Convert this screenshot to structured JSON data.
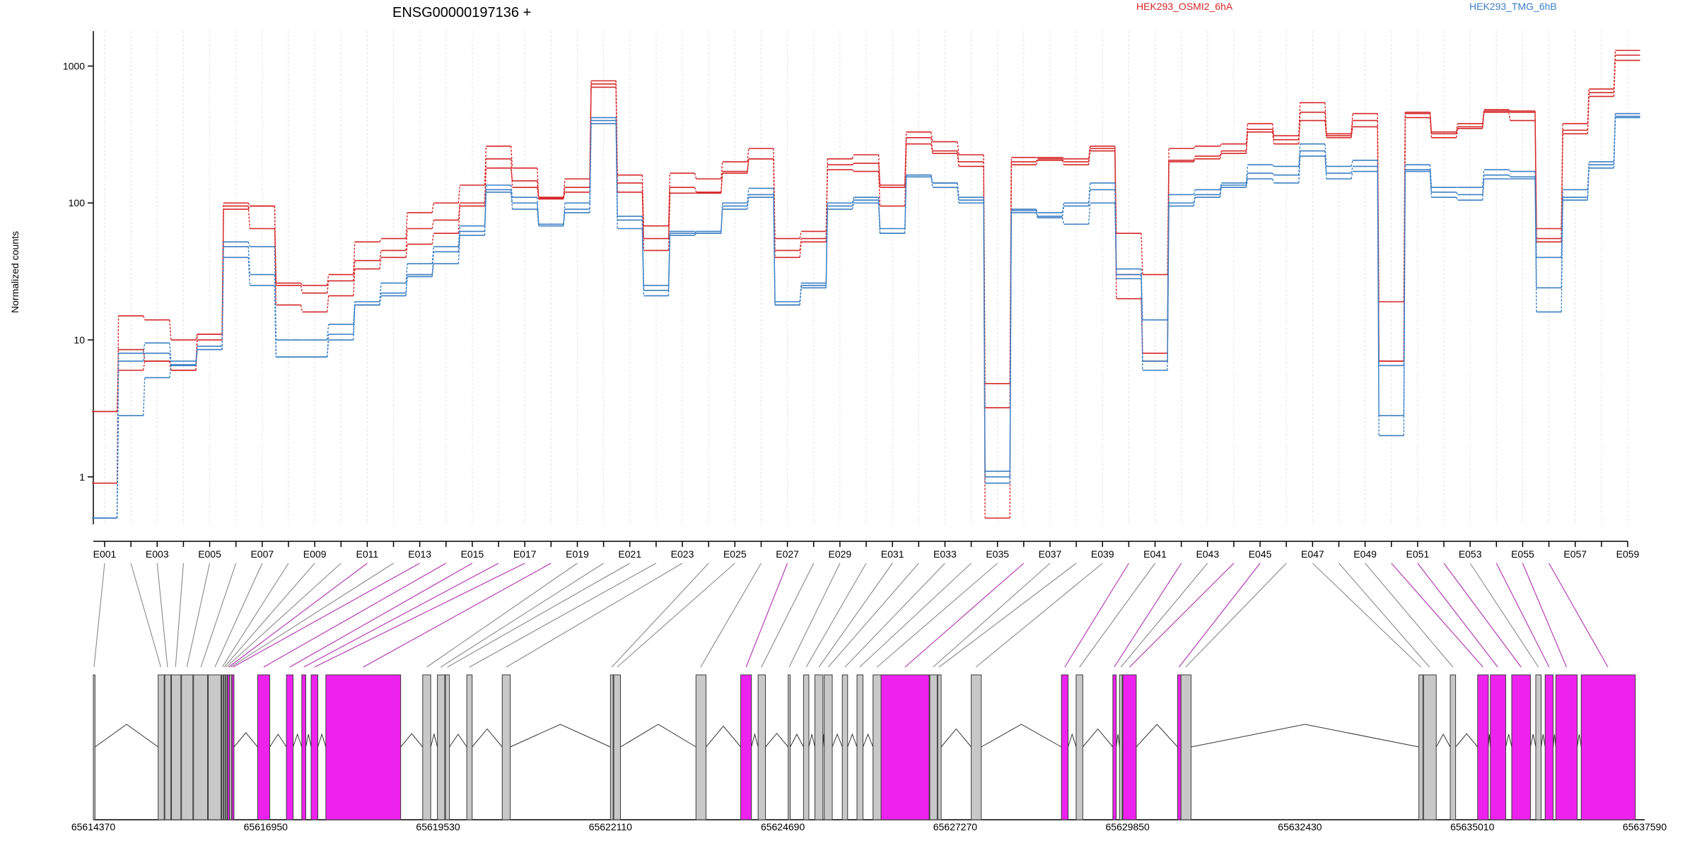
{
  "chart_data": {
    "type": "line",
    "title": "ENSG00000197136 +",
    "ylabel": "Normalized counts",
    "yscale": "log",
    "ylim": [
      0.45,
      1800
    ],
    "grid": "vertical",
    "legend": "top",
    "yticks": [
      1,
      10,
      100,
      1000
    ],
    "ytick_labels": [
      "1",
      "10",
      "100",
      "1000"
    ],
    "colors": {
      "HEK293_OSMI2_6hA": "#d62728",
      "HEK293_TMG_6hB": "#3b7fc4",
      "connector_gray": "#888888",
      "connector_magenta": "#b02fb0",
      "exon_gray": "#c8c8c8",
      "exon_magenta": "#ee22ee"
    },
    "exons": [
      "E001",
      "E002",
      "E003",
      "E004",
      "E005",
      "E006",
      "E007",
      "E008",
      "E009",
      "E010",
      "E011",
      "E012",
      "E013",
      "E014",
      "E015",
      "E016",
      "E017",
      "E018",
      "E019",
      "E020",
      "E021",
      "E022",
      "E023",
      "E024",
      "E025",
      "E026",
      "E027",
      "E028",
      "E029",
      "E030",
      "E031",
      "E032",
      "E033",
      "E034",
      "E035",
      "E036",
      "E037",
      "E038",
      "E039",
      "E040",
      "E041",
      "E042",
      "E043",
      "E044",
      "E045",
      "E046",
      "E047",
      "E048",
      "E049",
      "E050",
      "E051",
      "E052",
      "E053",
      "E054",
      "E055",
      "E056",
      "E057",
      "E058",
      "E059"
    ],
    "exon_tick_labels": [
      "E001",
      "E003",
      "E005",
      "E007",
      "E009",
      "E011",
      "E013",
      "E015",
      "E017",
      "E019",
      "E021",
      "E023",
      "E025",
      "E027",
      "E029",
      "E031",
      "E033",
      "E035",
      "E037",
      "E039",
      "E041",
      "E043",
      "E045",
      "E047",
      "E049",
      "E051",
      "E053",
      "E055",
      "E057",
      "E059"
    ],
    "series": [
      {
        "name": "HEK293_OSMI2_6hA",
        "group": "HEK293_OSMI2_6hA",
        "values": [
          0.9,
          15,
          14,
          10,
          11,
          100,
          95,
          26,
          25,
          30,
          52,
          55,
          85,
          100,
          135,
          260,
          180,
          110,
          150,
          780,
          160,
          68,
          165,
          150,
          200,
          250,
          55,
          62,
          210,
          225,
          135,
          330,
          280,
          225,
          4.8,
          215,
          215,
          210,
          260,
          60,
          30,
          250,
          260,
          270,
          380,
          310,
          540,
          320,
          450,
          19,
          460,
          330,
          380,
          480,
          470,
          65,
          380,
          680,
          1300
        ]
      },
      {
        "name": "HEK293_OSMI2_6hA",
        "group": "HEK293_OSMI2_6hA",
        "values": [
          3,
          8.5,
          7,
          6,
          11,
          95,
          65,
          25,
          22,
          27,
          38,
          45,
          65,
          75,
          100,
          180,
          145,
          108,
          120,
          740,
          120,
          55,
          130,
          120,
          165,
          210,
          45,
          55,
          175,
          170,
          95,
          270,
          230,
          185,
          0.5,
          190,
          205,
          190,
          240,
          20,
          8,
          200,
          210,
          230,
          330,
          270,
          400,
          300,
          360,
          7,
          420,
          300,
          350,
          460,
          400,
          55,
          320,
          600,
          1100
        ]
      },
      {
        "name": "HEK293_OSMI2_6hA",
        "group": "HEK293_OSMI2_6hA",
        "values": [
          3,
          6,
          7,
          6,
          10,
          90,
          95,
          18,
          16,
          21,
          33,
          40,
          50,
          60,
          95,
          210,
          130,
          107,
          130,
          700,
          140,
          45,
          118,
          118,
          170,
          210,
          40,
          52,
          190,
          195,
          130,
          300,
          240,
          200,
          3.2,
          200,
          210,
          200,
          250,
          30,
          7,
          205,
          220,
          240,
          345,
          290,
          460,
          310,
          400,
          7,
          450,
          320,
          360,
          470,
          460,
          52,
          340,
          640,
          1200
        ]
      },
      {
        "name": "HEK293_TMG_6hB",
        "group": "HEK293_TMG_6hB",
        "values": [
          0.5,
          8,
          9.5,
          7,
          9,
          52,
          48,
          10,
          10,
          13,
          19,
          26,
          36,
          48,
          68,
          135,
          110,
          70,
          90,
          420,
          80,
          25,
          62,
          60,
          100,
          128,
          18,
          26,
          100,
          110,
          65,
          160,
          140,
          110,
          1.1,
          90,
          85,
          100,
          140,
          33,
          14,
          115,
          125,
          140,
          190,
          185,
          270,
          185,
          205,
          6.5,
          190,
          130,
          130,
          175,
          170,
          40,
          125,
          200,
          450
        ]
      },
      {
        "name": "HEK293_TMG_6hB",
        "group": "HEK293_TMG_6hB",
        "values": [
          0.5,
          7,
          8,
          6.5,
          8.5,
          48,
          30,
          7.5,
          7.5,
          10,
          18,
          21,
          29,
          36,
          58,
          125,
          90,
          68,
          100,
          380,
          65,
          21,
          58,
          62,
          90,
          110,
          18,
          25,
          90,
          100,
          60,
          155,
          130,
          100,
          0.9,
          85,
          78,
          70,
          100,
          28,
          6,
          95,
          110,
          130,
          150,
          140,
          220,
          150,
          170,
          2,
          170,
          110,
          105,
          150,
          150,
          16,
          105,
          180,
          420
        ]
      },
      {
        "name": "HEK293_TMG_6hB",
        "group": "HEK293_TMG_6hB",
        "values": [
          0.5,
          2.8,
          5.3,
          6.6,
          8.5,
          40,
          25,
          7.5,
          7.5,
          11,
          18,
          22,
          30,
          44,
          62,
          120,
          100,
          70,
          85,
          400,
          75,
          23,
          60,
          60,
          95,
          115,
          19,
          24,
          95,
          105,
          60,
          160,
          140,
          105,
          1.0,
          88,
          80,
          95,
          125,
          30,
          7,
          100,
          115,
          135,
          165,
          160,
          240,
          165,
          185,
          2.8,
          175,
          120,
          115,
          160,
          155,
          24,
          110,
          190,
          430
        ]
      }
    ],
    "genomic_ticks": [
      65614370,
      65616950,
      65619530,
      65622110,
      65624690,
      65627270,
      65629850,
      65632430,
      65635010,
      65637590
    ],
    "genomic_tick_labels": [
      "65614370",
      "65616950",
      "65619530",
      "65622110",
      "65624690",
      "65627270",
      "65629850",
      "65632430",
      "65635010",
      "65637590"
    ],
    "genomic_range": [
      65614370,
      65637590
    ],
    "exon_regions": [
      {
        "start": 65614370,
        "end": 65614395,
        "magenta": false
      },
      {
        "start": 65615340,
        "end": 65615430,
        "magenta": false
      },
      {
        "start": 65615440,
        "end": 65615530,
        "magenta": false
      },
      {
        "start": 65615540,
        "end": 65615680,
        "magenta": false
      },
      {
        "start": 65615690,
        "end": 65615860,
        "magenta": false
      },
      {
        "start": 65615870,
        "end": 65616080,
        "magenta": false
      },
      {
        "start": 65616090,
        "end": 65616280,
        "magenta": false
      },
      {
        "start": 65616290,
        "end": 65616310,
        "magenta": false
      },
      {
        "start": 65616320,
        "end": 65616340,
        "magenta": false
      },
      {
        "start": 65616350,
        "end": 65616370,
        "magenta": false
      },
      {
        "start": 65616380,
        "end": 65616410,
        "magenta": true
      },
      {
        "start": 65616410,
        "end": 65616440,
        "magenta": false
      },
      {
        "start": 65616445,
        "end": 65616475,
        "magenta": true
      },
      {
        "start": 65616830,
        "end": 65617010,
        "magenta": true
      },
      {
        "start": 65617260,
        "end": 65617360,
        "magenta": true
      },
      {
        "start": 65617490,
        "end": 65617550,
        "magenta": true
      },
      {
        "start": 65617630,
        "end": 65617730,
        "magenta": true
      },
      {
        "start": 65617850,
        "end": 65618970,
        "magenta": true
      },
      {
        "start": 65619300,
        "end": 65619420,
        "magenta": false
      },
      {
        "start": 65619520,
        "end": 65619630,
        "magenta": false
      },
      {
        "start": 65619640,
        "end": 65619700,
        "magenta": false
      },
      {
        "start": 65619960,
        "end": 65620040,
        "magenta": false
      },
      {
        "start": 65620490,
        "end": 65620610,
        "magenta": false
      },
      {
        "start": 65622110,
        "end": 65622150,
        "magenta": false
      },
      {
        "start": 65622160,
        "end": 65622260,
        "magenta": false
      },
      {
        "start": 65623390,
        "end": 65623540,
        "magenta": false
      },
      {
        "start": 65624060,
        "end": 65624220,
        "magenta": true
      },
      {
        "start": 65624320,
        "end": 65624430,
        "magenta": false
      },
      {
        "start": 65624770,
        "end": 65624800,
        "magenta": false
      },
      {
        "start": 65625000,
        "end": 65625080,
        "magenta": false
      },
      {
        "start": 65625170,
        "end": 65625290,
        "magenta": false
      },
      {
        "start": 65625310,
        "end": 65625430,
        "magenta": false
      },
      {
        "start": 65625580,
        "end": 65625660,
        "magenta": false
      },
      {
        "start": 65625800,
        "end": 65625890,
        "magenta": false
      },
      {
        "start": 65626040,
        "end": 65626160,
        "magenta": false
      },
      {
        "start": 65626160,
        "end": 65626880,
        "magenta": true
      },
      {
        "start": 65626890,
        "end": 65627000,
        "magenta": false
      },
      {
        "start": 65627010,
        "end": 65627060,
        "magenta": false
      },
      {
        "start": 65627510,
        "end": 65627660,
        "magenta": false
      },
      {
        "start": 65628860,
        "end": 65628960,
        "magenta": true
      },
      {
        "start": 65629080,
        "end": 65629180,
        "magenta": false
      },
      {
        "start": 65629630,
        "end": 65629680,
        "magenta": true
      },
      {
        "start": 65629730,
        "end": 65629770,
        "magenta": false
      },
      {
        "start": 65629780,
        "end": 65629980,
        "magenta": true
      },
      {
        "start": 65630600,
        "end": 65630650,
        "magenta": true
      },
      {
        "start": 65630650,
        "end": 65630800,
        "magenta": false
      },
      {
        "start": 65634210,
        "end": 65634270,
        "magenta": false
      },
      {
        "start": 65634280,
        "end": 65634470,
        "magenta": false
      },
      {
        "start": 65634680,
        "end": 65634760,
        "magenta": false
      },
      {
        "start": 65635090,
        "end": 65635250,
        "magenta": true
      },
      {
        "start": 65635280,
        "end": 65635510,
        "magenta": true
      },
      {
        "start": 65635600,
        "end": 65635880,
        "magenta": true
      },
      {
        "start": 65635960,
        "end": 65636040,
        "magenta": false
      },
      {
        "start": 65636100,
        "end": 65636220,
        "magenta": true
      },
      {
        "start": 65636260,
        "end": 65636580,
        "magenta": true
      },
      {
        "start": 65636640,
        "end": 65637450,
        "magenta": true
      }
    ],
    "connectors": [
      {
        "exon": "E001",
        "pos": 65614380,
        "magenta": false
      },
      {
        "exon": "E002",
        "pos": 65615380,
        "magenta": false
      },
      {
        "exon": "E003",
        "pos": 65615480,
        "magenta": false
      },
      {
        "exon": "E004",
        "pos": 65615600,
        "magenta": false
      },
      {
        "exon": "E005",
        "pos": 65615770,
        "magenta": false
      },
      {
        "exon": "E006",
        "pos": 65615980,
        "magenta": false
      },
      {
        "exon": "E007",
        "pos": 65616190,
        "magenta": false
      },
      {
        "exon": "E008",
        "pos": 65616300,
        "magenta": false
      },
      {
        "exon": "E009",
        "pos": 65616330,
        "magenta": false
      },
      {
        "exon": "E010",
        "pos": 65616360,
        "magenta": false
      },
      {
        "exon": "E011",
        "pos": 65616395,
        "magenta": true
      },
      {
        "exon": "E012",
        "pos": 65616425,
        "magenta": false
      },
      {
        "exon": "E013",
        "pos": 65616460,
        "magenta": true
      },
      {
        "exon": "E014",
        "pos": 65616920,
        "magenta": true
      },
      {
        "exon": "E015",
        "pos": 65617310,
        "magenta": true
      },
      {
        "exon": "E016",
        "pos": 65617520,
        "magenta": true
      },
      {
        "exon": "E017",
        "pos": 65617680,
        "magenta": true
      },
      {
        "exon": "E018",
        "pos": 65618410,
        "magenta": true
      },
      {
        "exon": "E019",
        "pos": 65619360,
        "magenta": false
      },
      {
        "exon": "E020",
        "pos": 65619570,
        "magenta": false
      },
      {
        "exon": "E021",
        "pos": 65619670,
        "magenta": false
      },
      {
        "exon": "E022",
        "pos": 65620000,
        "magenta": false
      },
      {
        "exon": "E023",
        "pos": 65620550,
        "magenta": false
      },
      {
        "exon": "E024",
        "pos": 65622130,
        "magenta": false
      },
      {
        "exon": "E025",
        "pos": 65622210,
        "magenta": false
      },
      {
        "exon": "E026",
        "pos": 65623460,
        "magenta": false
      },
      {
        "exon": "E027",
        "pos": 65624140,
        "magenta": true
      },
      {
        "exon": "E028",
        "pos": 65624370,
        "magenta": false
      },
      {
        "exon": "E029",
        "pos": 65624785,
        "magenta": false
      },
      {
        "exon": "E030",
        "pos": 65625040,
        "magenta": false
      },
      {
        "exon": "E031",
        "pos": 65625230,
        "magenta": false
      },
      {
        "exon": "E032",
        "pos": 65625370,
        "magenta": false
      },
      {
        "exon": "E033",
        "pos": 65625620,
        "magenta": false
      },
      {
        "exon": "E034",
        "pos": 65625840,
        "magenta": false
      },
      {
        "exon": "E035",
        "pos": 65626100,
        "magenta": false
      },
      {
        "exon": "E036",
        "pos": 65626520,
        "magenta": true
      },
      {
        "exon": "E037",
        "pos": 65626940,
        "magenta": false
      },
      {
        "exon": "E038",
        "pos": 65627030,
        "magenta": false
      },
      {
        "exon": "E039",
        "pos": 65627580,
        "magenta": false
      },
      {
        "exon": "E040",
        "pos": 65628910,
        "magenta": true
      },
      {
        "exon": "E041",
        "pos": 65629130,
        "magenta": false
      },
      {
        "exon": "E042",
        "pos": 65629650,
        "magenta": true
      },
      {
        "exon": "E043",
        "pos": 65629750,
        "magenta": false
      },
      {
        "exon": "E044",
        "pos": 65629880,
        "magenta": true
      },
      {
        "exon": "E045",
        "pos": 65630620,
        "magenta": true
      },
      {
        "exon": "E046",
        "pos": 65630720,
        "magenta": false
      },
      {
        "exon": "E047",
        "pos": 65634240,
        "magenta": false
      },
      {
        "exon": "E048",
        "pos": 65634370,
        "magenta": false
      },
      {
        "exon": "E049",
        "pos": 65634720,
        "magenta": false
      },
      {
        "exon": "E050",
        "pos": 65635170,
        "magenta": true
      },
      {
        "exon": "E051",
        "pos": 65635390,
        "magenta": true
      },
      {
        "exon": "E052",
        "pos": 65635740,
        "magenta": true
      },
      {
        "exon": "E053",
        "pos": 65636000,
        "magenta": false
      },
      {
        "exon": "E054",
        "pos": 65636160,
        "magenta": true
      },
      {
        "exon": "E055",
        "pos": 65636420,
        "magenta": true
      },
      {
        "exon": "E056",
        "pos": 65637040,
        "magenta": true
      }
    ]
  }
}
